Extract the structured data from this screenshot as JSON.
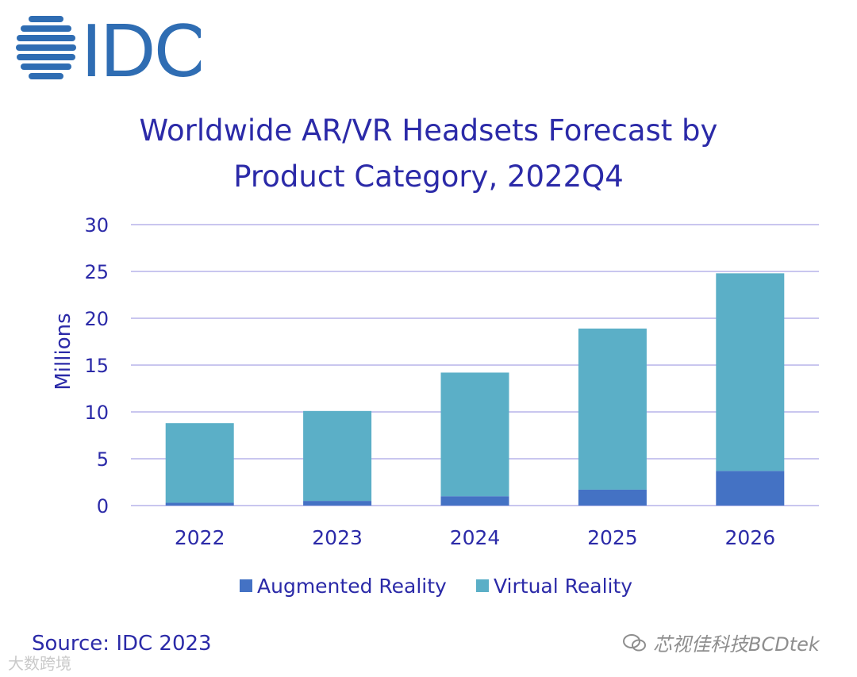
{
  "logo": {
    "text": "IDC",
    "color": "#2f6db3"
  },
  "title": {
    "line1": "Worldwide AR/VR Headsets Forecast by",
    "line2": "Product Category, 2022Q4"
  },
  "source": "Source: IDC 2023",
  "watermark": "芯视佳科技BCDtek",
  "watermark2": "大数跨境",
  "chart_data": {
    "type": "bar",
    "stacked": true,
    "categories": [
      "2022",
      "2023",
      "2024",
      "2025",
      "2026"
    ],
    "series": [
      {
        "name": "Augmented Reality",
        "color": "#4472c4",
        "values": [
          0.3,
          0.5,
          1.0,
          1.7,
          3.7
        ]
      },
      {
        "name": "Virtual Reality",
        "color": "#5bafc7",
        "values": [
          8.5,
          9.6,
          13.2,
          17.2,
          21.1
        ]
      }
    ],
    "ylabel": "Millions",
    "xlabel": "",
    "ylim": [
      0,
      30
    ],
    "yticks": [
      0,
      5,
      10,
      15,
      20,
      25,
      30
    ],
    "grid": true,
    "legend": "bottom",
    "colors": {
      "text": "#2b2aa8",
      "grid": "#c9c6ef"
    }
  }
}
